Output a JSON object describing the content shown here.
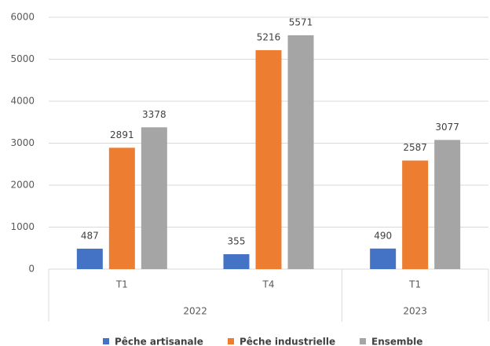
{
  "chart_data": {
    "type": "bar",
    "categories": [
      "T1",
      "T4",
      "T1"
    ],
    "category_groups": [
      "2022",
      "2022",
      "2023"
    ],
    "series": [
      {
        "name": "Pêche artisanale",
        "color": "#4472c4",
        "values": [
          487,
          355,
          490
        ]
      },
      {
        "name": "Pêche industrielle",
        "color": "#ed7d31",
        "values": [
          2891,
          5216,
          2587
        ]
      },
      {
        "name": "Ensemble",
        "color": "#a5a5a5",
        "values": [
          3378,
          5571,
          3077
        ]
      }
    ],
    "ylim": [
      0,
      6000
    ],
    "yticks": [
      0,
      1000,
      2000,
      3000,
      4000,
      5000,
      6000
    ],
    "grid": true,
    "legend": "bottom"
  }
}
